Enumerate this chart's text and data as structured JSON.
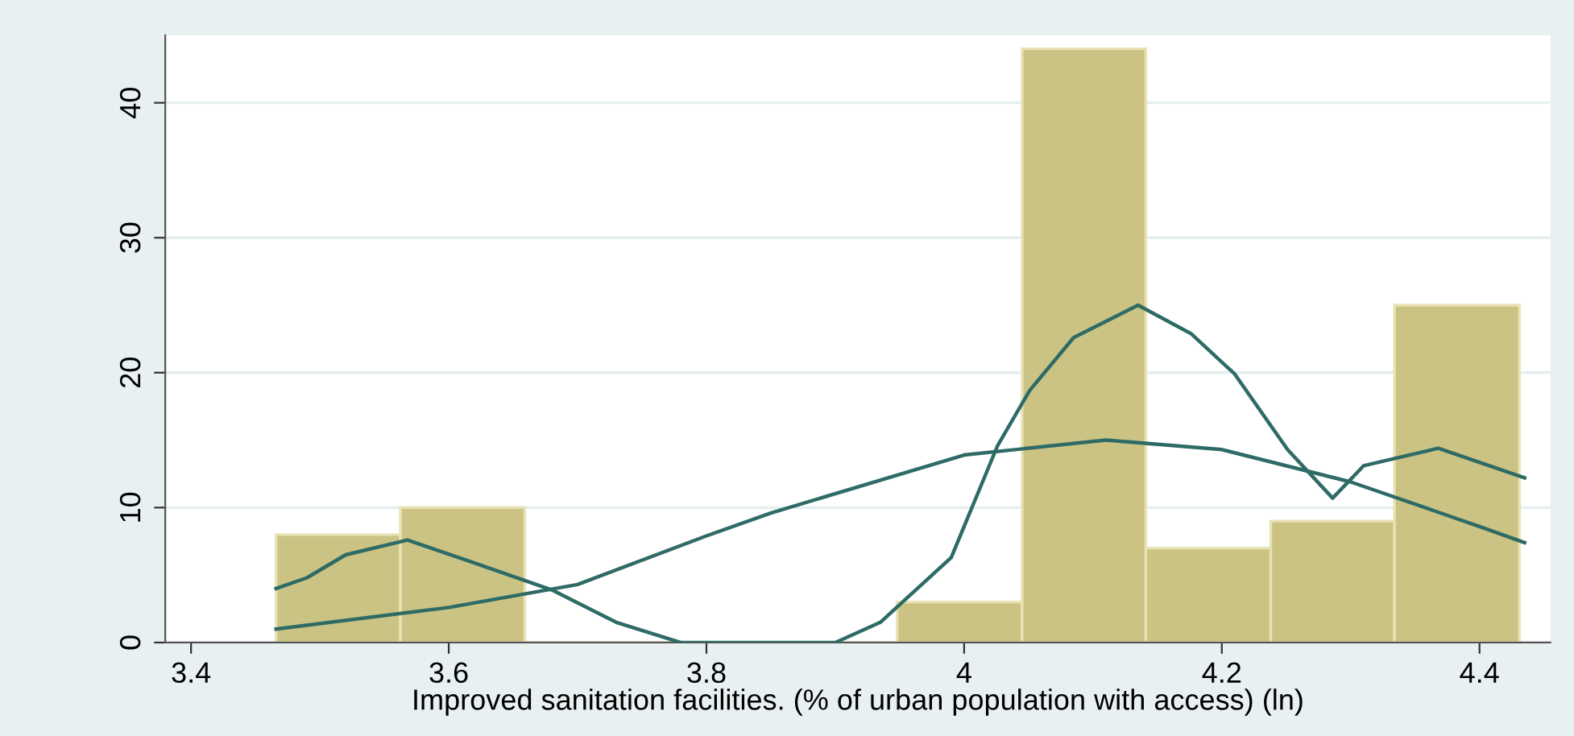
{
  "chart_data": {
    "type": "histogram",
    "xlabel": "Improved sanitation facilities. (% of urban population with access) (ln)",
    "bins": [
      3.466,
      3.5625,
      3.659,
      3.948,
      4.045,
      4.141,
      4.238,
      4.334,
      4.431
    ],
    "values": [
      8,
      10,
      0,
      3,
      44,
      7,
      9,
      25
    ],
    "color": "#cbc383",
    "series": [
      {
        "type": "line",
        "color": "#2e6b66",
        "x": [
          3.466,
          3.49,
          3.52,
          3.568,
          3.62,
          3.68,
          3.73,
          3.78,
          3.9,
          3.935,
          3.99,
          4.026,
          4.051,
          4.085,
          4.135,
          4.176,
          4.21,
          4.251,
          4.286,
          4.31,
          4.368,
          4.435
        ],
        "values": [
          4.0,
          4.8,
          6.5,
          7.6,
          5.9,
          3.9,
          1.5,
          0,
          0,
          1.5,
          6.3,
          14.6,
          18.7,
          22.6,
          25.0,
          22.9,
          19.9,
          14.3,
          10.7,
          13.1,
          14.4,
          12.2
        ]
      },
      {
        "type": "line",
        "color": "#2e6b66",
        "x": [
          3.466,
          3.6,
          3.7,
          3.8,
          3.85,
          4.0,
          4.11,
          4.2,
          4.3,
          4.4,
          4.435
        ],
        "values": [
          1.0,
          2.6,
          4.3,
          7.9,
          9.6,
          13.9,
          15.0,
          14.3,
          11.9,
          8.6,
          7.4
        ]
      }
    ],
    "xlim": [
      3.38,
      4.455
    ],
    "xticks": [
      3.4,
      3.6,
      3.8,
      4,
      4.2,
      4.4
    ],
    "ylim": [
      0,
      45
    ],
    "yticks": [
      0,
      10,
      20,
      30,
      40
    ],
    "grid": "y",
    "legend": false
  }
}
